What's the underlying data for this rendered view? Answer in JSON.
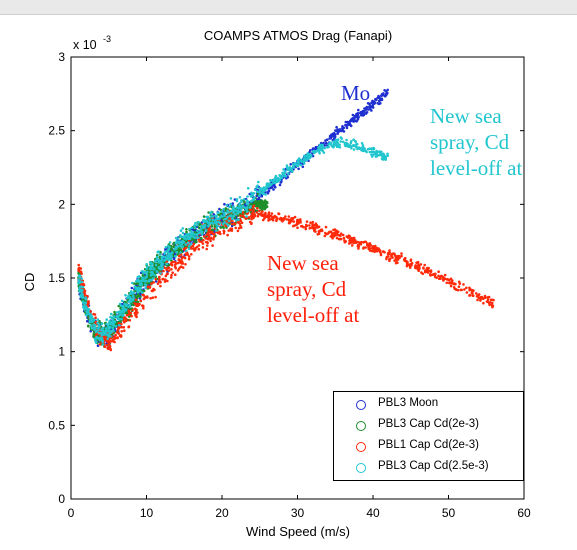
{
  "window": {
    "title": ""
  },
  "colors": {
    "moon": "#1f2fd0",
    "pbl3_cap2": "#1e8f2a",
    "pbl1_cap2": "#ff2a0a",
    "pbl3_cap25": "#22c6cf"
  },
  "annotations": {
    "moon": "Mo",
    "cyan": [
      "New sea",
      "spray, Cd",
      "level-off at"
    ],
    "red": [
      "New sea",
      "spray, Cd",
      "level-off at"
    ]
  },
  "chart_data": {
    "type": "scatter",
    "title": "COAMPS ATMOS Drag (Fanapi)",
    "xlabel": "Wind Speed (m/s)",
    "ylabel": "CD",
    "y_multiplier": "x 10",
    "y_multiplier_exp": "-3",
    "xlim": [
      0,
      60
    ],
    "ylim": [
      0,
      3
    ],
    "xticks": [
      "0",
      "10",
      "20",
      "30",
      "40",
      "50",
      "60"
    ],
    "yticks": [
      "0",
      "0.5",
      "1",
      "1.5",
      "2",
      "2.5",
      "3"
    ],
    "grid": false,
    "legend_position": "bottom-right",
    "series": [
      {
        "name": "PBL3 Moon",
        "color": "#1f2fd0",
        "x": [
          1,
          2,
          3,
          4,
          5,
          6,
          8,
          10,
          12,
          14,
          16,
          18,
          20,
          22,
          24,
          26,
          28,
          30,
          32,
          34,
          36,
          38,
          40,
          42
        ],
        "y": [
          1.5,
          1.3,
          1.15,
          1.1,
          1.12,
          1.2,
          1.35,
          1.5,
          1.6,
          1.7,
          1.78,
          1.84,
          1.9,
          1.95,
          2.02,
          2.1,
          2.18,
          2.27,
          2.35,
          2.43,
          2.52,
          2.6,
          2.68,
          2.76
        ]
      },
      {
        "name": "PBL3 Cap Cd(2e-3)",
        "color": "#1e8f2a",
        "x": [
          1,
          2,
          3,
          4,
          5,
          6,
          8,
          10,
          12,
          14,
          16,
          18,
          20,
          22,
          24,
          26
        ],
        "y": [
          1.5,
          1.3,
          1.15,
          1.1,
          1.12,
          1.2,
          1.35,
          1.5,
          1.6,
          1.7,
          1.78,
          1.84,
          1.9,
          1.94,
          1.98,
          2.0
        ]
      },
      {
        "name": "PBL1 Cap Cd(2e-3)",
        "color": "#ff2a0a",
        "x": [
          1,
          2,
          3,
          4,
          5,
          6,
          8,
          10,
          12,
          14,
          16,
          18,
          20,
          22,
          24,
          26,
          30,
          35,
          40,
          45,
          50,
          55,
          56
        ],
        "y": [
          1.55,
          1.35,
          1.2,
          1.1,
          1.05,
          1.1,
          1.25,
          1.4,
          1.5,
          1.6,
          1.7,
          1.78,
          1.85,
          1.9,
          1.93,
          1.92,
          1.88,
          1.8,
          1.7,
          1.6,
          1.48,
          1.35,
          1.32
        ]
      },
      {
        "name": "PBL3 Cap Cd(2.5e-3)",
        "color": "#22c6cf",
        "x": [
          1,
          2,
          3,
          4,
          5,
          6,
          8,
          10,
          12,
          14,
          16,
          18,
          20,
          22,
          24,
          26,
          28,
          30,
          32,
          34,
          36,
          38,
          40,
          42
        ],
        "y": [
          1.5,
          1.3,
          1.15,
          1.12,
          1.15,
          1.22,
          1.37,
          1.52,
          1.62,
          1.72,
          1.8,
          1.86,
          1.92,
          1.97,
          2.04,
          2.12,
          2.2,
          2.28,
          2.35,
          2.4,
          2.42,
          2.4,
          2.36,
          2.31
        ]
      }
    ]
  }
}
